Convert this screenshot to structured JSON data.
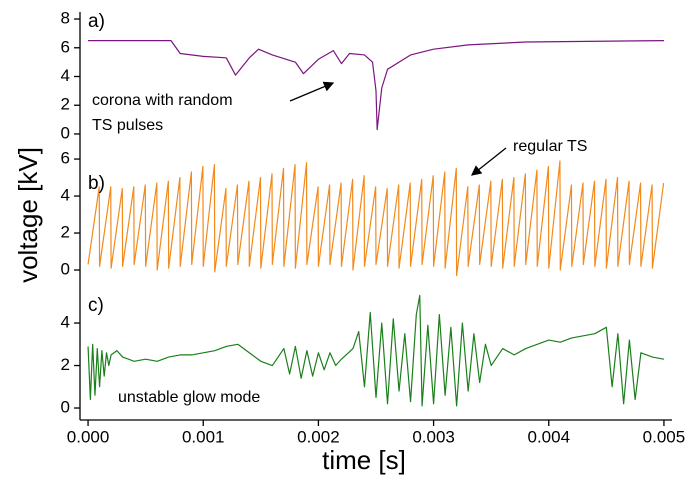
{
  "chart_data": [
    {
      "type": "line",
      "label": "a)",
      "color": "#7b1680",
      "annotation": [
        "corona with random",
        "TS pulses"
      ],
      "x": [
        0,
        0.0003,
        0.0006,
        0.00072,
        0.0008,
        0.001,
        0.0012,
        0.00128,
        0.0014,
        0.00148,
        0.0016,
        0.0018,
        0.00187,
        0.002,
        0.00213,
        0.0022,
        0.00227,
        0.0024,
        0.00247,
        0.0025,
        0.00251,
        0.00255,
        0.0026,
        0.0028,
        0.003,
        0.0033,
        0.0038,
        0.005
      ],
      "values": [
        6.5,
        6.5,
        6.5,
        6.5,
        5.6,
        5.4,
        5.3,
        4.1,
        5.3,
        5.9,
        5.5,
        5.0,
        4.2,
        5.2,
        5.8,
        4.9,
        5.6,
        5.5,
        5.0,
        3.0,
        0.3,
        3.2,
        4.5,
        5.5,
        5.9,
        6.2,
        6.4,
        6.5
      ],
      "xlim": [
        -7e-05,
        0.00507
      ],
      "ylim": [
        -0.42,
        8.49
      ],
      "yticks": [
        0,
        2,
        4,
        6,
        8
      ]
    },
    {
      "type": "line",
      "label": "b)",
      "color": "#f28a1c",
      "annotation": "regular TS",
      "ylabel": "voltage [kV]",
      "x": [
        0,
        9.7e-05,
        0.0001,
        0.000197,
        0.0002,
        0.000297,
        0.0003,
        0.000397,
        0.0004,
        0.000497,
        0.0005,
        0.000597,
        0.0006,
        0.000697,
        0.0007,
        0.000797,
        0.0008,
        0.000897,
        0.0009,
        0.000997,
        0.001,
        0.001097,
        0.0011,
        0.001197,
        0.0012,
        0.001297,
        0.0013,
        0.001397,
        0.0014,
        0.001497,
        0.0015,
        0.001597,
        0.0016,
        0.001697,
        0.0017,
        0.001797,
        0.0018,
        0.001897,
        0.0019,
        0.001997,
        0.002,
        0.002097,
        0.0021,
        0.002197,
        0.0022,
        0.002297,
        0.0023,
        0.002397,
        0.0024,
        0.002497,
        0.0025,
        0.002597,
        0.0026,
        0.002697,
        0.0027,
        0.002797,
        0.0028,
        0.002897,
        0.0029,
        0.002997,
        0.003,
        0.003097,
        0.0031,
        0.003197,
        0.0032,
        0.003297,
        0.0033,
        0.003397,
        0.0034,
        0.003497,
        0.0035,
        0.003597,
        0.0036,
        0.003697,
        0.0037,
        0.003797,
        0.0038,
        0.003897,
        0.0039,
        0.003997,
        0.004,
        0.004097,
        0.0041,
        0.004197,
        0.0042,
        0.004297,
        0.0043,
        0.004397,
        0.0044,
        0.004497,
        0.0045,
        0.004597,
        0.0046,
        0.004697,
        0.0047,
        0.004797,
        0.0048,
        0.004897,
        0.0049,
        0.004997
      ],
      "values": [
        0.3,
        4.5,
        0.2,
        4.5,
        0.1,
        4.4,
        0.2,
        4.5,
        0.3,
        4.6,
        0.2,
        4.7,
        0.0,
        4.8,
        0.1,
        5.0,
        0.2,
        5.3,
        0.3,
        5.6,
        0.2,
        5.7,
        -0.1,
        4.4,
        0.2,
        4.6,
        0.3,
        4.8,
        0.2,
        5.0,
        0.1,
        5.2,
        0.3,
        5.5,
        0.2,
        5.7,
        0.1,
        5.8,
        0.3,
        4.5,
        0.2,
        4.6,
        0.3,
        4.7,
        0.2,
        4.9,
        0.0,
        5.1,
        0.2,
        4.5,
        0.3,
        4.4,
        0.2,
        4.6,
        0.1,
        4.7,
        0.2,
        4.9,
        0.3,
        5.1,
        0.2,
        5.3,
        0.1,
        5.5,
        -0.3,
        4.5,
        0.2,
        4.6,
        0.3,
        4.8,
        0.2,
        4.9,
        0.1,
        5.0,
        0.2,
        5.2,
        0.3,
        5.4,
        0.2,
        5.6,
        0.1,
        5.9,
        0.0,
        4.6,
        0.2,
        4.7,
        0.3,
        4.8,
        0.2,
        4.9,
        0.1,
        5.0,
        0.2,
        4.8,
        0.3,
        4.7,
        0.2,
        4.6,
        0.1,
        4.7
      ],
      "xlim": [
        -7e-05,
        0.00507
      ],
      "ylim": [
        -0.54,
        6.49
      ],
      "yticks": [
        0,
        2,
        4,
        6
      ]
    },
    {
      "type": "line",
      "label": "c)",
      "color": "#1b7f1b",
      "annotation": "unstable glow mode",
      "xlabel": "time [s]",
      "x": [
        0,
        2e-05,
        4e-05,
        6e-05,
        8e-05,
        0.0001,
        0.00012,
        0.00014,
        0.00016,
        0.00018,
        0.0002,
        0.00025,
        0.0003,
        0.0004,
        0.0005,
        0.0006,
        0.0007,
        0.0008,
        0.0009,
        0.001,
        0.0011,
        0.0012,
        0.0013,
        0.0014,
        0.0015,
        0.0016,
        0.0017,
        0.00175,
        0.0018,
        0.00185,
        0.0019,
        0.00195,
        0.002,
        0.00205,
        0.0021,
        0.00215,
        0.0022,
        0.0023,
        0.00235,
        0.0024,
        0.00245,
        0.0025,
        0.00255,
        0.0026,
        0.00265,
        0.0027,
        0.00275,
        0.0028,
        0.00285,
        0.00288,
        0.0029,
        0.00295,
        0.003,
        0.00305,
        0.0031,
        0.00315,
        0.0032,
        0.00325,
        0.0033,
        0.00335,
        0.0034,
        0.00345,
        0.0035,
        0.0036,
        0.0037,
        0.0038,
        0.0039,
        0.004,
        0.0041,
        0.0042,
        0.0043,
        0.0044,
        0.0045,
        0.00455,
        0.0046,
        0.00465,
        0.0047,
        0.00475,
        0.0048,
        0.0049,
        0.005
      ],
      "values": [
        2.9,
        0.4,
        3.0,
        0.6,
        2.8,
        1.0,
        2.7,
        1.5,
        2.6,
        2.0,
        2.5,
        2.7,
        2.4,
        2.2,
        2.3,
        2.2,
        2.4,
        2.5,
        2.5,
        2.6,
        2.7,
        2.9,
        3.0,
        2.6,
        2.2,
        2.0,
        2.8,
        1.6,
        2.9,
        1.4,
        2.7,
        1.5,
        2.6,
        1.8,
        2.6,
        2.0,
        2.3,
        2.8,
        3.6,
        1.0,
        4.5,
        0.5,
        4.0,
        0.2,
        4.2,
        0.8,
        3.5,
        0.3,
        4.4,
        5.3,
        0.1,
        3.9,
        0.2,
        4.4,
        0.6,
        3.8,
        0.1,
        4.0,
        0.8,
        3.5,
        1.2,
        3.0,
        2.0,
        2.8,
        2.5,
        2.8,
        3.0,
        3.2,
        3.1,
        3.3,
        3.4,
        3.5,
        3.8,
        1.0,
        3.5,
        0.2,
        3.2,
        0.4,
        2.6,
        2.4,
        2.3
      ],
      "xlim": [
        -7e-05,
        0.00507
      ],
      "ylim": [
        -0.47,
        5.65
      ],
      "yticks": [
        0,
        2,
        4
      ],
      "xticks": [
        {
          "value": 0,
          "label": "0.000"
        },
        {
          "value": 0.001,
          "label": "0.001"
        },
        {
          "value": 0.002,
          "label": "0.002"
        },
        {
          "value": 0.003,
          "label": "0.003"
        },
        {
          "value": 0.004,
          "label": "0.004"
        },
        {
          "value": 0.005,
          "label": "0.005"
        }
      ]
    }
  ]
}
